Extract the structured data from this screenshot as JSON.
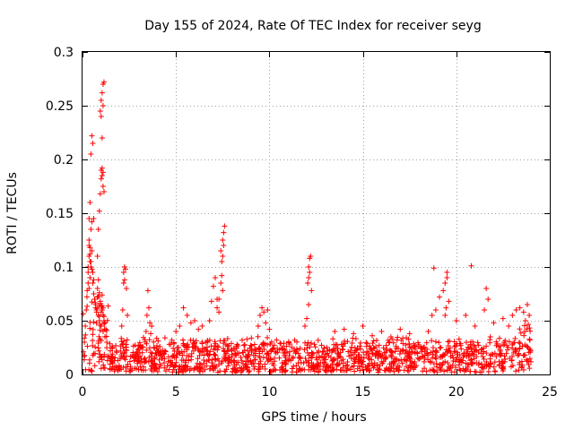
{
  "chart_data": {
    "type": "scatter",
    "title": "Day 155 of 2024, Rate Of TEC Index for receiver seyg",
    "xlabel": "GPS time / hours",
    "ylabel": "ROTI / TECUs",
    "xlim": [
      0,
      25
    ],
    "ylim": [
      0,
      0.3
    ],
    "xticks": [
      0,
      5,
      10,
      15,
      20,
      25
    ],
    "xtick_labels": [
      "0",
      "5",
      "10",
      "15",
      "20",
      "25"
    ],
    "yticks": [
      0,
      0.05,
      0.1,
      0.15,
      0.2,
      0.25,
      0.3
    ],
    "ytick_labels": [
      "0",
      "0.05",
      "0.1",
      "0.15",
      "0.2",
      "0.25",
      "0.3"
    ],
    "grid": true,
    "marker": "+",
    "series_color": "#ff0000",
    "series": [
      {
        "name": "ROTI",
        "x": [
          0.05,
          0.1,
          0.15,
          0.2,
          0.25,
          0.3,
          0.35,
          0.4,
          0.45,
          0.5,
          0.55,
          0.6,
          0.65,
          0.7,
          0.75,
          0.8,
          0.85,
          0.9,
          0.95,
          1.0,
          1.05,
          1.1,
          1.15,
          1.2,
          1.25,
          1.3,
          0.3,
          0.35,
          0.4,
          0.45,
          0.5,
          0.55,
          0.6,
          0.65,
          0.7,
          0.75,
          0.8,
          0.85,
          0.9,
          0.95,
          1.0,
          1.05,
          1.1,
          1.15,
          1.2,
          0.35,
          0.4,
          0.45,
          0.5,
          0.55,
          0.6,
          0.35,
          0.4,
          0.45,
          0.5,
          0.3,
          0.35,
          0.4,
          0.8,
          0.85,
          0.9,
          0.95,
          1.0,
          1.05,
          1.1,
          1.15,
          0.95,
          1.0,
          1.05,
          1.1,
          1.15,
          1.0,
          1.05,
          1.1,
          1.0,
          1.05,
          1.1,
          2.1,
          2.15,
          2.2,
          2.25,
          2.3,
          2.35,
          2.4,
          2.2,
          2.25,
          3.4,
          3.45,
          3.5,
          3.55,
          3.6,
          3.65,
          3.7,
          5.0,
          5.2,
          5.4,
          5.6,
          5.8,
          6.0,
          6.2,
          6.4,
          6.8,
          6.9,
          7.0,
          7.1,
          7.2,
          7.3,
          7.4,
          7.5,
          7.55,
          7.6,
          7.45,
          7.5,
          7.55,
          7.4,
          7.45,
          7.5,
          7.2,
          7.3,
          9.4,
          9.5,
          9.6,
          9.7,
          9.8,
          9.9,
          10.0,
          11.9,
          12.0,
          12.05,
          12.1,
          12.15,
          12.2,
          12.25,
          12.1,
          12.15,
          12.1,
          13.5,
          14.0,
          14.5,
          15.0,
          15.5,
          16.0,
          16.5,
          17.0,
          17.5,
          18.5,
          18.7,
          18.9,
          19.1,
          19.3,
          19.4,
          19.5,
          19.6,
          19.5,
          19.45,
          19.4,
          18.8,
          20.0,
          20.5,
          20.8,
          21.0,
          21.5,
          21.6,
          21.7,
          22.0,
          22.5,
          22.8,
          23.0,
          23.2,
          23.4,
          23.6,
          23.7,
          23.8,
          23.9
        ],
        "y": [
          0.021,
          0.03,
          0.045,
          0.06,
          0.078,
          0.095,
          0.11,
          0.118,
          0.105,
          0.098,
          0.085,
          0.075,
          0.07,
          0.065,
          0.06,
          0.072,
          0.055,
          0.05,
          0.068,
          0.045,
          0.06,
          0.04,
          0.05,
          0.035,
          0.042,
          0.03,
          0.085,
          0.08,
          0.09,
          0.1,
          0.115,
          0.095,
          0.088,
          0.07,
          0.062,
          0.058,
          0.08,
          0.088,
          0.076,
          0.066,
          0.058,
          0.074,
          0.062,
          0.054,
          0.048,
          0.145,
          0.16,
          0.205,
          0.222,
          0.215,
          0.145,
          0.125,
          0.105,
          0.135,
          0.142,
          0.1,
          0.12,
          0.112,
          0.11,
          0.135,
          0.152,
          0.168,
          0.182,
          0.192,
          0.188,
          0.17,
          0.245,
          0.255,
          0.262,
          0.27,
          0.272,
          0.24,
          0.22,
          0.25,
          0.19,
          0.185,
          0.175,
          0.045,
          0.06,
          0.085,
          0.1,
          0.098,
          0.08,
          0.055,
          0.095,
          0.088,
          0.04,
          0.055,
          0.078,
          0.062,
          0.048,
          0.038,
          0.045,
          0.04,
          0.045,
          0.062,
          0.055,
          0.048,
          0.05,
          0.042,
          0.045,
          0.05,
          0.068,
          0.082,
          0.09,
          0.07,
          0.058,
          0.115,
          0.125,
          0.132,
          0.138,
          0.105,
          0.11,
          0.12,
          0.085,
          0.092,
          0.078,
          0.062,
          0.07,
          0.045,
          0.055,
          0.062,
          0.058,
          0.048,
          0.06,
          0.042,
          0.045,
          0.052,
          0.085,
          0.1,
          0.108,
          0.11,
          0.078,
          0.09,
          0.095,
          0.065,
          0.04,
          0.042,
          0.038,
          0.045,
          0.036,
          0.04,
          0.035,
          0.042,
          0.038,
          0.04,
          0.055,
          0.06,
          0.072,
          0.078,
          0.085,
          0.095,
          0.068,
          0.09,
          0.062,
          0.055,
          0.099,
          0.05,
          0.055,
          0.101,
          0.045,
          0.06,
          0.08,
          0.07,
          0.048,
          0.052,
          0.045,
          0.055,
          0.06,
          0.062,
          0.058,
          0.05,
          0.065,
          0.055
        ]
      }
    ],
    "note": "Dense baseline of points between ~0.003 and ~0.035 TECU across 0-24 h, with spikes listed above."
  }
}
